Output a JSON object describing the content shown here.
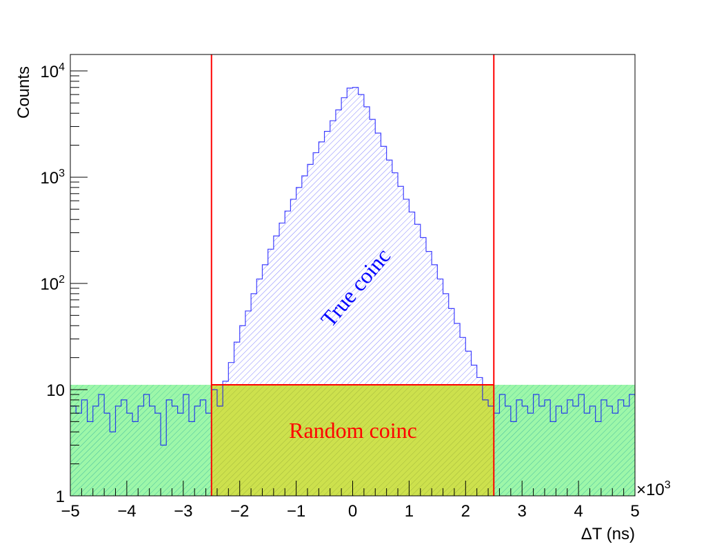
{
  "chart_data": {
    "type": "bar",
    "title": "",
    "xlabel": "ΔT (ns)",
    "ylabel": "Counts",
    "x_multiplier_label": "×10",
    "x_multiplier_exp": "3",
    "xlim": [
      -5000,
      5000
    ],
    "ylim": [
      1,
      14300
    ],
    "yscale": "log",
    "bin_width": 100,
    "x_ticks": [
      -5,
      -4,
      -3,
      -2,
      -1,
      0,
      1,
      2,
      3,
      4,
      5
    ],
    "x_tick_labels": [
      "−5",
      "−4",
      "−3",
      "−2",
      "−1",
      "0",
      "1",
      "2",
      "3",
      "4",
      "5"
    ],
    "y_ticks": [
      {
        "value": 1,
        "base": "1",
        "exp": ""
      },
      {
        "value": 10,
        "base": "10",
        "exp": ""
      },
      {
        "value": 100,
        "base": "10",
        "exp": "2"
      },
      {
        "value": 1000,
        "base": "10",
        "exp": "3"
      },
      {
        "value": 10000,
        "base": "10",
        "exp": "4"
      }
    ],
    "series": [
      {
        "name": "True coinc",
        "color": "#0000ff",
        "bin_centers_start": -4950,
        "values": [
          7,
          6,
          8,
          5,
          7,
          9,
          6,
          4,
          7,
          8,
          6,
          5,
          7,
          9,
          7,
          6,
          3,
          8,
          7,
          6,
          9,
          5,
          7,
          8,
          6,
          10,
          7,
          12,
          18,
          28,
          40,
          55,
          80,
          110,
          150,
          210,
          280,
          370,
          480,
          620,
          800,
          1030,
          1320,
          1700,
          2150,
          2700,
          3400,
          4300,
          5600,
          6900,
          7000,
          6000,
          4600,
          3500,
          2600,
          1950,
          1450,
          1100,
          820,
          620,
          470,
          360,
          270,
          200,
          150,
          110,
          80,
          58,
          42,
          31,
          23,
          17,
          13,
          8,
          7,
          6,
          9,
          7,
          5,
          8,
          7,
          6,
          9,
          7,
          8,
          5,
          7,
          6,
          8,
          7,
          9,
          6,
          7,
          5,
          8,
          7,
          6,
          8,
          7,
          9
        ]
      }
    ],
    "background_level": 11.1,
    "background_color": "#33ff33",
    "window": {
      "x_min": -2500,
      "x_max": 2500,
      "color": "#ff0000",
      "fill": "#cccc00"
    },
    "annotations": [
      {
        "text": "True coinc",
        "color": "#0000ff"
      },
      {
        "text": "Random coinc",
        "color": "#ff0000"
      }
    ]
  }
}
